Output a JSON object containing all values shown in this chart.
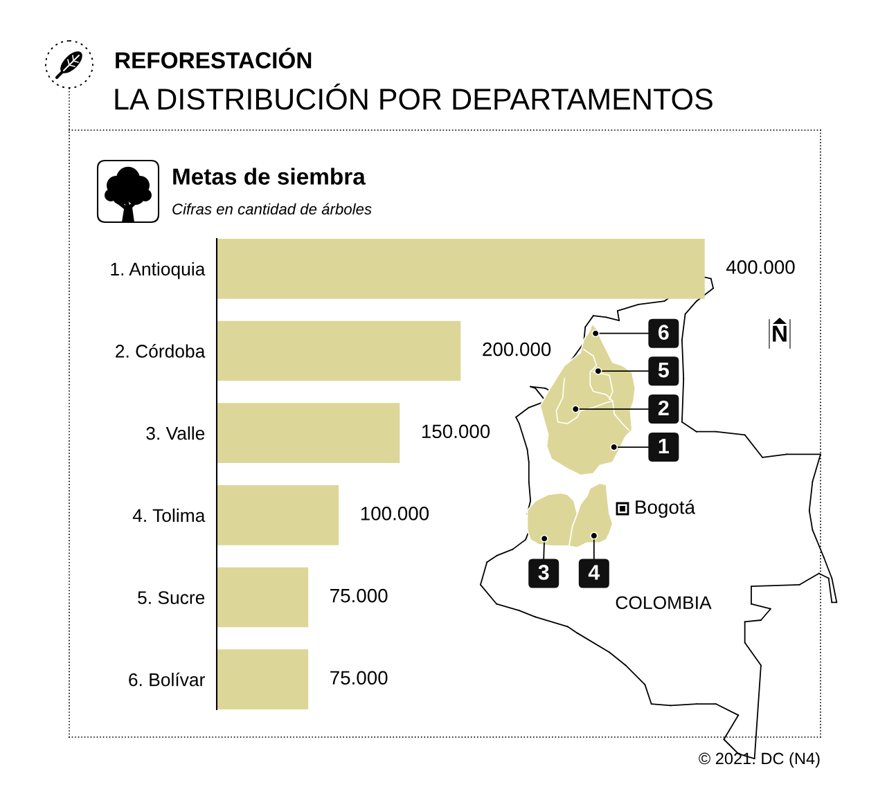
{
  "chart_data": {
    "type": "bar",
    "orientation": "horizontal",
    "title": "REFORESTACIÓN",
    "subtitle": "LA DISTRIBUCIÓN POR DEPARTAMENTOS",
    "categories": [
      "1. Antioquia",
      "2. Córdoba",
      "3. Valle",
      "4. Tolima",
      "5. Sucre",
      "6. Bolívar"
    ],
    "values": [
      400000,
      200000,
      150000,
      100000,
      75000,
      75000
    ],
    "value_labels": [
      "400.000",
      "200.000",
      "150.000",
      "100.000",
      "75.000",
      "75.000"
    ],
    "color": "#dcd798",
    "tick_labels": "y",
    "annotations": [
      "Metas de siembra",
      "Cifras en cantidad de árboles",
      "© 2021. DC (N4)",
      "Bogotá",
      "COLOMBIA",
      "N",
      "6",
      "5",
      "2",
      "1",
      "3",
      "4"
    ]
  }
}
